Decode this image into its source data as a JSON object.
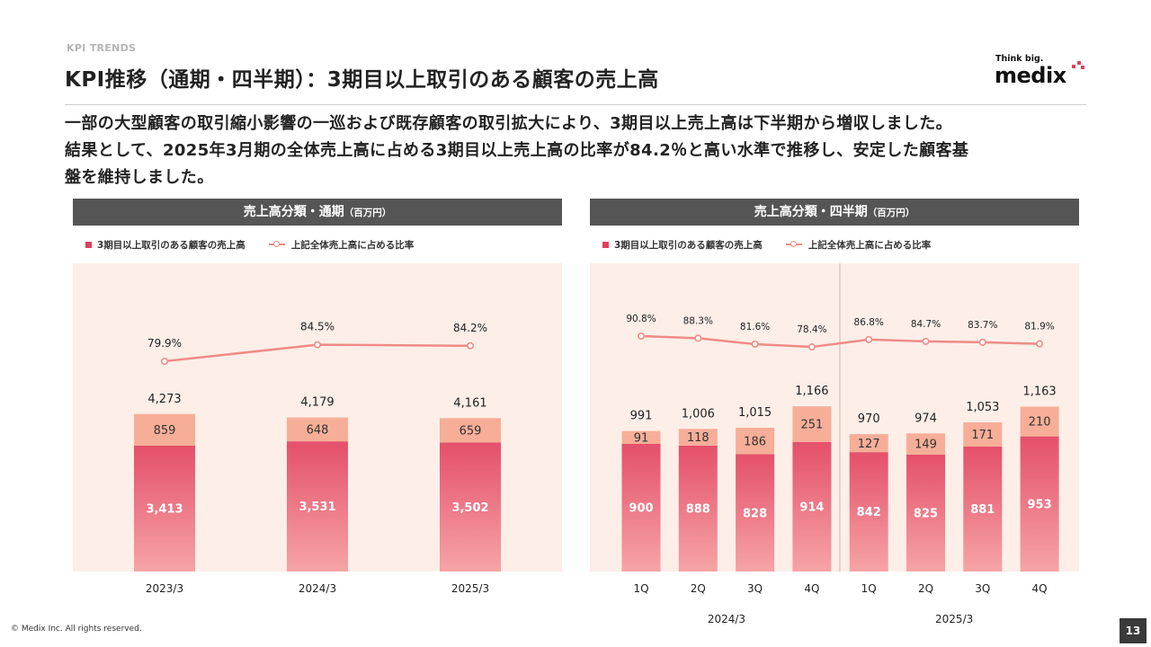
{
  "header": {
    "kicker": "KPI TRENDS",
    "title": "KPI推移（通期・四半期）：3期目以上取引のある顧客の売上高"
  },
  "logo": {
    "tagline": "Think big.",
    "wordmark": "medix"
  },
  "lead": [
    "一部の大型顧客の取引縮小影響の一巡および既存顧客の取引拡大により、3期目以上売上高は下半期から増収しました。",
    "結果として、2025年3月期の全体売上高に占める3期目以上売上高の比率が84.2％と高い水準で推移し、安定した顧客基",
    "盤を維持しました。"
  ],
  "legend": {
    "bar": "3期目以上取引のある顧客の売上高",
    "line": "上記全体売上高に占める比率"
  },
  "colors": {
    "accent": "#e0405e",
    "bar_light": "#f6ae98",
    "line": "#ef8b87",
    "plot_bg": "#fdeee8",
    "band": "#555555"
  },
  "chart_data": [
    {
      "type": "bar",
      "title": "売上高分類・通期",
      "unit": "（百万円）",
      "categories": [
        "2023/3",
        "2024/3",
        "2025/3"
      ],
      "series": [
        {
          "name": "3期目以上取引のある顧客の売上高",
          "values": [
            3413,
            3531,
            3502
          ],
          "labels": [
            "3,413",
            "3,531",
            "3,502"
          ]
        },
        {
          "values": [
            859,
            648,
            659
          ],
          "labels": [
            "859",
            "648",
            "659"
          ]
        }
      ],
      "totals": [
        4273,
        4179,
        4161
      ],
      "total_labels": [
        "4,273",
        "4,179",
        "4,161"
      ],
      "ratio": {
        "name": "上記全体売上高に占める比率",
        "values": [
          79.9,
          84.5,
          84.2
        ],
        "labels": [
          "79.9%",
          "84.5%",
          "84.2%"
        ]
      }
    },
    {
      "type": "bar",
      "title": "売上高分類・四半期",
      "unit": "（百万円）",
      "categories": [
        "1Q",
        "2Q",
        "3Q",
        "4Q",
        "1Q",
        "2Q",
        "3Q",
        "4Q"
      ],
      "groups": [
        "2024/3",
        "2025/3"
      ],
      "series": [
        {
          "name": "3期目以上取引のある顧客の売上高",
          "values": [
            900,
            888,
            828,
            914,
            842,
            825,
            881,
            953
          ],
          "labels": [
            "900",
            "888",
            "828",
            "914",
            "842",
            "825",
            "881",
            "953"
          ]
        },
        {
          "values": [
            91,
            118,
            186,
            251,
            127,
            149,
            171,
            210
          ],
          "labels": [
            "91",
            "118",
            "186",
            "251",
            "127",
            "149",
            "171",
            "210"
          ]
        }
      ],
      "totals": [
        991,
        1006,
        1015,
        1166,
        970,
        974,
        1053,
        1163
      ],
      "total_labels": [
        "991",
        "1,006",
        "1,015",
        "1,166",
        "970",
        "974",
        "1,053",
        "1,163"
      ],
      "ratio": {
        "name": "上記全体売上高に占める比率",
        "values": [
          90.8,
          88.3,
          81.6,
          78.4,
          86.8,
          84.7,
          83.7,
          81.9
        ],
        "labels": [
          "90.8%",
          "88.3%",
          "81.6%",
          "78.4%",
          "86.8%",
          "84.7%",
          "83.7%",
          "81.9%"
        ]
      }
    }
  ],
  "footer": {
    "copyright": "© Medix Inc. All rights reserved.",
    "page": "13"
  }
}
